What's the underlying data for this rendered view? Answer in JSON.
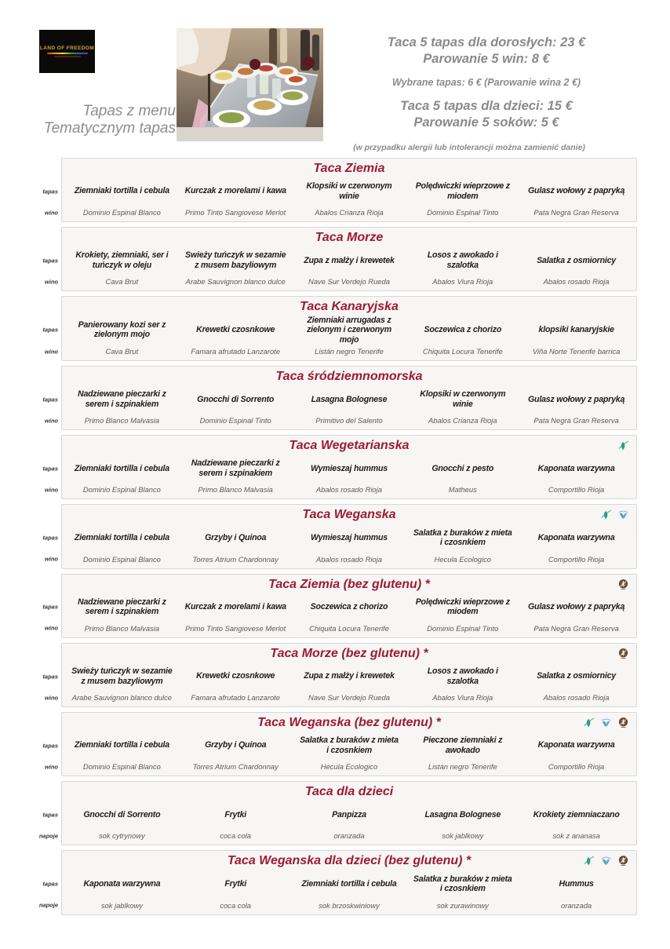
{
  "header": {
    "logo_text": "LAND OF FREEDOM",
    "tagline_line1": "Tapas z menu",
    "tagline_line2": "Tematycznym tapas",
    "pricing": {
      "adult_line1": "Taca 5 tapas dla dorosłych: 23 €",
      "adult_line2": "Parowanie 5 win: 8 €",
      "single_tapas": "Wybrane tapas: 6 € (Parowanie wina 2 €)",
      "kids_line1": "Taca 5 tapas dla dzieci: 15 €",
      "kids_line2": "Parowanie 5 soków: 5 €",
      "allergy_note": "(w przypadku alergii lub intolerancji można zamienić danie)"
    },
    "photo_alt": "tray-of-tapas-photo"
  },
  "colors": {
    "title_red": "#9c1b31",
    "gray_text": "#8a8a8a",
    "card_bg": "#f7f6f4",
    "vegetarian_green": "#2e9e83",
    "vegan_blue": "#4a9bd5",
    "gluten_brown": "#6b4a2f"
  },
  "sections": [
    {
      "title": "Taca Ziemia",
      "row1_label": "tapas",
      "row2_label": "wino",
      "icons": [],
      "tapas": [
        "Ziemniaki tortilla i cebula",
        "Kurczak z morelami i kawa",
        "Klopsiki w czerwonym winie",
        "Polędwiczki wieprzowe z miodem",
        "Gulasz wołowy z papryką"
      ],
      "drinks": [
        "Dominio Espinal Blanco",
        "Primo Tinto Sangiovese Merlot",
        "Abalos Crianza Rioja",
        "Dominio Espinal Tinto",
        "Pata Negra Gran Reserva"
      ]
    },
    {
      "title": "Taca Morze",
      "row1_label": "tapas",
      "row2_label": "wino",
      "icons": [],
      "tapas": [
        "Krokiety, ziemniaki, ser i tuńczyk w oleju",
        "Swieży tuńczyk w sezamie z musem bazyliowym",
        "Zupa z małży i krewetek",
        "Losos z awokado i szalotka",
        "Salatka z osmiornicy"
      ],
      "drinks": [
        "Cava Brut",
        "Arabe Sauvignon blanco dulce",
        "Nave Sur Verdejo Rueda",
        "Abalos Viura Rioja",
        "Abalos rosado Rioja"
      ]
    },
    {
      "title": "Taca Kanaryjska",
      "row1_label": "tapas",
      "row2_label": "wino",
      "icons": [],
      "tapas": [
        "Panierowany kozi ser z zielonym mojo",
        "Krewetki czosnkowe",
        "Ziemniaki arrugadas z zielonym i czerwonym mojo",
        "Soczewica z chorizo",
        "klopsiki kanaryjskie"
      ],
      "drinks": [
        "Cava Brut",
        "Famara afrutado Lanzarote",
        "Listán negro Tenerife",
        "Chiquita Locura Tenerife",
        "Viña Norte Tenerife barrica"
      ]
    },
    {
      "title": "Taca śródziemnomorska",
      "row1_label": "tapas",
      "row2_label": "wino",
      "icons": [],
      "tapas": [
        "Nadziewane pieczarki z serem i szpinakiem",
        "Gnocchi di Sorrento",
        "Lasagna Bolognese",
        "Klopsiki w czerwonym winie",
        "Gulasz wołowy z papryką"
      ],
      "drinks": [
        "Primo Blanco Malvasia",
        "Dominio Espinal Tinto",
        "Primitivo del Salento",
        "Abalos Crianza Rioja",
        "Pata Negra Gran Reserva"
      ]
    },
    {
      "title": "Taca Wegetarianska",
      "row1_label": "tapas",
      "row2_label": "wino",
      "icons": [
        "vegetarian"
      ],
      "tapas": [
        "Ziemniaki tortilla i cebula",
        "Nadziewane pieczarki z serem i szpinakiem",
        "Wymieszaj hummus",
        "Gnocchi z pesto",
        "Kaponata warzywna"
      ],
      "drinks": [
        "Dominio Espinal Blanco",
        "Primo Blanco Malvasia",
        "Abalos rosado Rioja",
        "Matheus",
        "Comportillo Rioja"
      ]
    },
    {
      "title": "Taca Weganska",
      "row1_label": "tapas",
      "row2_label": "wino",
      "icons": [
        "vegetarian",
        "vegan"
      ],
      "tapas": [
        "Ziemniaki tortilla i cebula",
        "Grzyby i Quinoa",
        "Wymieszaj hummus",
        "Salatka z buraków z mieta i czosnkiem",
        "Kaponata warzywna"
      ],
      "drinks": [
        "Dominio Espinal Blanco",
        "Torres Atrium Chardonnay",
        "Abalos rosado Rioja",
        "Hecula Ecologico",
        "Comportillo Rioja"
      ]
    },
    {
      "title": "Taca Ziemia (bez glutenu) *",
      "row1_label": "tapas",
      "row2_label": "wino",
      "icons": [
        "gluten-free"
      ],
      "tapas": [
        "Nadziewane pieczarki z serem i szpinakiem",
        "Kurczak z morelami i kawa",
        "Soczewica z chorizo",
        "Polędwiczki wieprzowe z miodem",
        "Gulasz wołowy z papryką"
      ],
      "drinks": [
        "Primo Blanco Malvasia",
        "Primo Tinto Sangiovese Merlot",
        "Chiquita Locura Tenerife",
        "Dominio Espinal Tinto",
        "Pata Negra Gran Reserva"
      ]
    },
    {
      "title": "Taca Morze (bez glutenu) *",
      "row1_label": "tapas",
      "row2_label": "wino",
      "icons": [
        "gluten-free"
      ],
      "tapas": [
        "Swieży tuńczyk w sezamie z musem bazyliowym",
        "Krewetki czosnkowe",
        "Zupa z małży i krewetek",
        "Losos z awokado i szalotka",
        "Salatka z osmiornicy"
      ],
      "drinks": [
        "Arabe Sauvignon blanco dulce",
        "Famara afrutado Lanzarote",
        "Nave Sur Verdejo Rueda",
        "Abalos Viura Rioja",
        "Abalos rosado Rioja"
      ]
    },
    {
      "title": "Taca Weganska (bez glutenu) *",
      "row1_label": "tapas",
      "row2_label": "wino",
      "icons": [
        "vegetarian",
        "vegan",
        "gluten-free"
      ],
      "tapas": [
        "Ziemniaki tortilla i cebula",
        "Grzyby i Quinoa",
        "Salatka z buraków z mieta i czosnkiem",
        "Pieczone ziemniaki z awokado",
        "Kaponata warzywna"
      ],
      "drinks": [
        "Dominio Espinal Blanco",
        "Torres Atrium Chardonnay",
        "Hecula Ecologico",
        "Listán negro Tenerife",
        "Comportillo Rioja"
      ]
    },
    {
      "title": "Taca dla dzieci",
      "row1_label": "tapas",
      "row2_label": "napoje",
      "icons": [],
      "tapas": [
        "Gnocchi di Sorrento",
        "Frytki",
        "Panpizza",
        "Lasagna Bolognese",
        "Krokiety ziemniaczano"
      ],
      "drinks": [
        "sok cytrynowy",
        "coca cola",
        "oranzada",
        "sok jablkowy",
        "sok z ananasa"
      ]
    },
    {
      "title": "Taca Weganska dla dzieci (bez glutenu) *",
      "row1_label": "tapas",
      "row2_label": "napoje",
      "icons": [
        "vegetarian",
        "vegan",
        "gluten-free"
      ],
      "tapas": [
        "Kaponata warzywna",
        "Frytki",
        "Ziemniaki tortilla i cebula",
        "Salatka z buraków z mieta i czosnkiem",
        "Hummus"
      ],
      "drinks": [
        "sok jablkowy",
        "coca cola",
        "sok brzoskwiniowy",
        "sok zurawinowy",
        "oranzada"
      ]
    }
  ]
}
